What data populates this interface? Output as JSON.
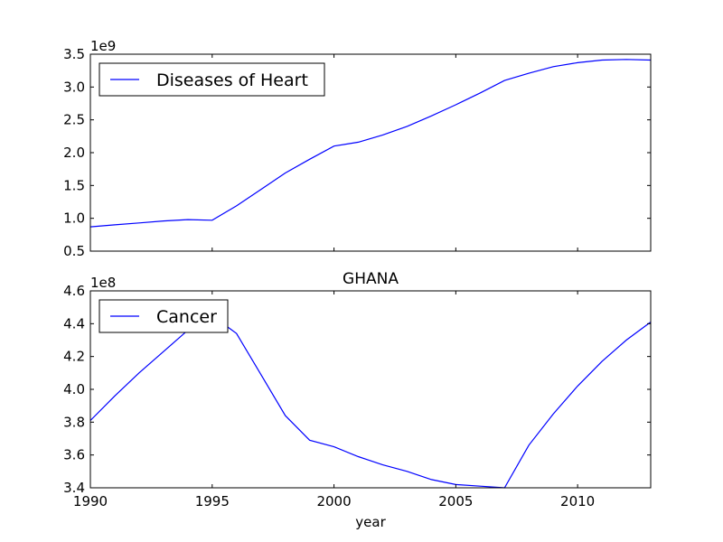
{
  "chart_data": [
    {
      "type": "line",
      "title": "",
      "xlabel": "",
      "ylabel": "",
      "offset_label": "1e9",
      "xlim": [
        1990,
        2013
      ],
      "ylim": [
        0.5,
        3.5
      ],
      "xticks": [
        1990,
        1995,
        2000,
        2005,
        2010
      ],
      "xtick_labels": [
        "",
        "",
        "",
        "",
        ""
      ],
      "yticks": [
        0.5,
        1.0,
        1.5,
        2.0,
        2.5,
        3.0,
        3.5
      ],
      "ytick_labels": [
        "0.5",
        "1.0",
        "1.5",
        "2.0",
        "2.5",
        "3.0",
        "3.5"
      ],
      "grid": false,
      "legend_position": "upper-left",
      "series": [
        {
          "name": "Diseases of Heart",
          "color": "#0000ff",
          "x": [
            1990,
            1991,
            1992,
            1993,
            1994,
            1995,
            1996,
            1997,
            1998,
            1999,
            2000,
            2001,
            2002,
            2003,
            2004,
            2005,
            2006,
            2007,
            2008,
            2009,
            2010,
            2011,
            2012,
            2013
          ],
          "values": [
            0.87,
            0.9,
            0.93,
            0.96,
            0.98,
            0.97,
            1.19,
            1.44,
            1.69,
            1.9,
            2.1,
            2.16,
            2.27,
            2.4,
            2.56,
            2.73,
            2.91,
            3.1,
            3.21,
            3.31,
            3.37,
            3.41,
            3.42,
            3.41
          ]
        }
      ]
    },
    {
      "type": "line",
      "title": "GHANA",
      "xlabel": "year",
      "ylabel": "",
      "offset_label": "1e8",
      "xlim": [
        1990,
        2013
      ],
      "ylim": [
        3.4,
        4.6
      ],
      "xticks": [
        1990,
        1995,
        2000,
        2005,
        2010
      ],
      "xtick_labels": [
        "1990",
        "1995",
        "2000",
        "2005",
        "2010"
      ],
      "yticks": [
        3.4,
        3.6,
        3.8,
        4.0,
        4.2,
        4.4,
        4.6
      ],
      "ytick_labels": [
        "3.4",
        "3.6",
        "3.8",
        "4.0",
        "4.2",
        "4.4",
        "4.6"
      ],
      "grid": false,
      "legend_position": "upper-left",
      "series": [
        {
          "name": "Cancer",
          "color": "#0000ff",
          "x": [
            1990,
            1991,
            1992,
            1993,
            1994,
            1995,
            1996,
            1997,
            1998,
            1999,
            2000,
            2001,
            2002,
            2003,
            2004,
            2005,
            2006,
            2007,
            2008,
            2009,
            2010,
            2011,
            2012,
            2013
          ],
          "values": [
            3.81,
            3.96,
            4.1,
            4.23,
            4.36,
            4.45,
            4.34,
            4.09,
            3.84,
            3.69,
            3.65,
            3.59,
            3.54,
            3.5,
            3.45,
            3.42,
            3.41,
            3.4,
            3.66,
            3.85,
            4.02,
            4.17,
            4.3,
            4.41
          ]
        }
      ]
    }
  ]
}
